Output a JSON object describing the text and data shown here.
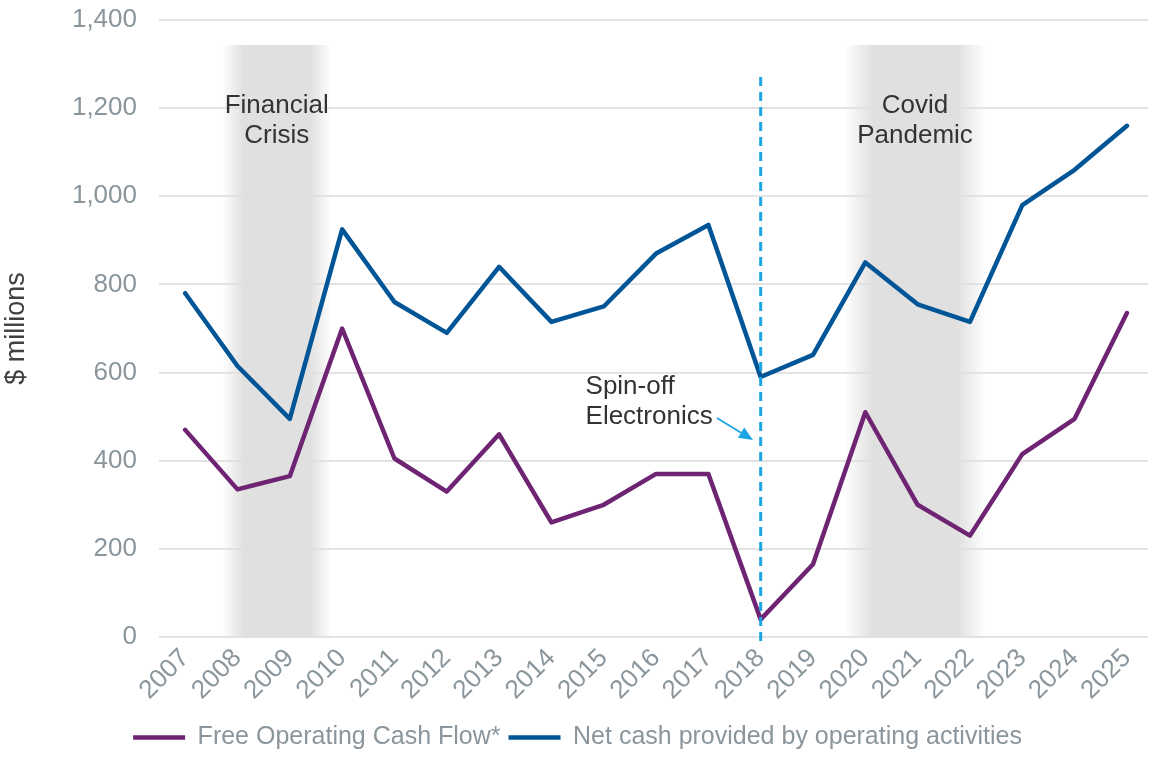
{
  "chart_data": {
    "type": "line",
    "ylabel": "$ millions",
    "x": [
      2007,
      2008,
      2009,
      2010,
      2011,
      2012,
      2013,
      2014,
      2015,
      2016,
      2017,
      2018,
      2019,
      2020,
      2021,
      2022,
      2023,
      2024,
      2025
    ],
    "series": [
      {
        "name": "Free Operating Cash Flow*",
        "color": "#6e2473",
        "values": [
          470,
          335,
          365,
          700,
          405,
          330,
          460,
          260,
          300,
          370,
          370,
          40,
          165,
          510,
          300,
          230,
          415,
          495,
          735
        ]
      },
      {
        "name": "Net cash provided by operating activities",
        "color": "#005596",
        "values": [
          780,
          615,
          495,
          925,
          760,
          690,
          840,
          715,
          750,
          870,
          935,
          590,
          640,
          850,
          755,
          715,
          980,
          1060,
          1160
        ]
      }
    ],
    "xlim": [
      2006.5,
      2025.4
    ],
    "xticks": [
      2007,
      2008,
      2009,
      2010,
      2011,
      2012,
      2013,
      2014,
      2015,
      2016,
      2017,
      2018,
      2019,
      2020,
      2021,
      2022,
      2023,
      2024,
      2025
    ],
    "ylim": [
      0,
      1400
    ],
    "yticks": [
      0,
      200,
      400,
      600,
      800,
      {
        "value": 1000,
        "label": "1,000"
      },
      {
        "value": 1200,
        "label": "1,200"
      },
      {
        "value": 1400,
        "label": "1,400"
      }
    ],
    "grid": "y",
    "legend": "bottom",
    "marker": "none",
    "line_style": "solid",
    "bands": [
      {
        "axis": "x",
        "from": 2007.7,
        "to": 2009.8,
        "label": "Financial Crisis",
        "color": "#e0e0e0"
      },
      {
        "axis": "x",
        "from": 2019.6,
        "to": 2022.3,
        "label": "Covid Pandemic",
        "color": "#e0e0e0"
      }
    ],
    "ref_lines": [
      {
        "axis": "x",
        "value": 2018,
        "label": "Spin-off Electronics",
        "color": "#1ca4e4",
        "line_style": "dashed"
      }
    ]
  }
}
